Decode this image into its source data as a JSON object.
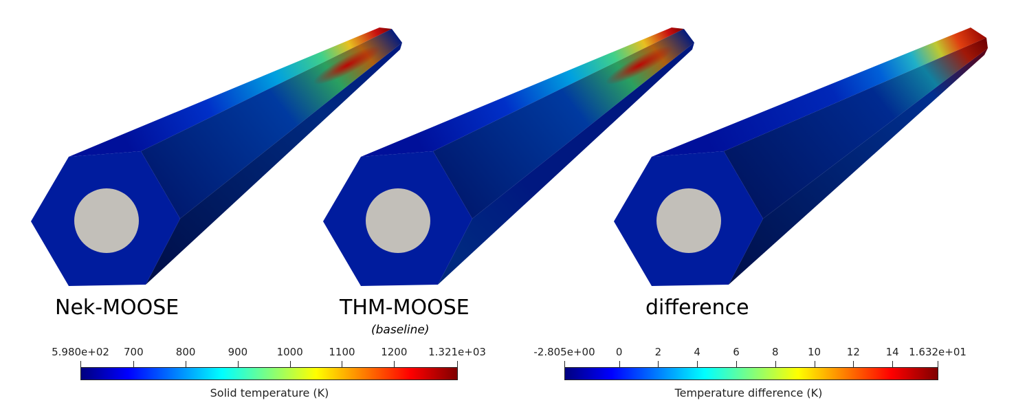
{
  "panels": [
    {
      "title": "Nek-MOOSE",
      "subtitle": "",
      "field": "solid_temperature"
    },
    {
      "title": "THM-MOOSE",
      "subtitle": "(baseline)",
      "field": "solid_temperature"
    },
    {
      "title": "difference",
      "subtitle": "",
      "field": "temperature_difference"
    }
  ],
  "colorbars": [
    {
      "title": "Solid temperature (K)",
      "min_label": "5.980e+02",
      "max_label": "1.321e+03",
      "min": 598.0,
      "max": 1321.0,
      "ticks": [
        {
          "value": 598.0,
          "label": "5.980e+02"
        },
        {
          "value": 700,
          "label": "700"
        },
        {
          "value": 800,
          "label": "800"
        },
        {
          "value": 900,
          "label": "900"
        },
        {
          "value": 1000,
          "label": "1000"
        },
        {
          "value": 1100,
          "label": "1100"
        },
        {
          "value": 1200,
          "label": "1200"
        },
        {
          "value": 1321.0,
          "label": "1.321e+03"
        }
      ]
    },
    {
      "title": "Temperature difference (K)",
      "min_label": "-2.805e+00",
      "max_label": "1.632e+01",
      "min": -2.805,
      "max": 16.32,
      "ticks": [
        {
          "value": -2.805,
          "label": "-2.805e+00"
        },
        {
          "value": 0,
          "label": "0"
        },
        {
          "value": 2,
          "label": "2"
        },
        {
          "value": 4,
          "label": "4"
        },
        {
          "value": 6,
          "label": "6"
        },
        {
          "value": 8,
          "label": "8"
        },
        {
          "value": 10,
          "label": "10"
        },
        {
          "value": 12,
          "label": "12"
        },
        {
          "value": 14,
          "label": "14"
        },
        {
          "value": 16.32,
          "label": "1.632e+01"
        }
      ]
    }
  ],
  "colors": {
    "jet": [
      "#00007f",
      "#0000ff",
      "#007fff",
      "#00ffff",
      "#7fff7f",
      "#ffff00",
      "#ff7f00",
      "#ff0000",
      "#7f0000"
    ],
    "hex_face": "#001c9e",
    "hex_side_dark": "#00165e",
    "pin_hole": "#c2bfb9"
  }
}
